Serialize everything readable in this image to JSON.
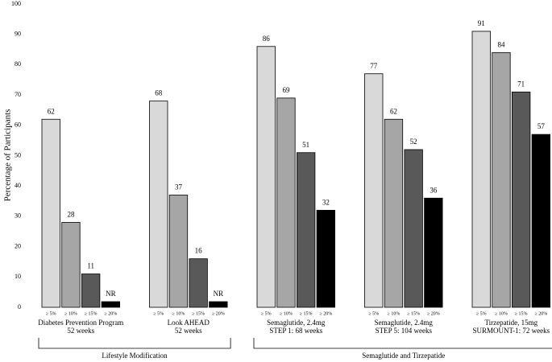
{
  "chart_data": {
    "type": "bar",
    "ylabel": "Percentage of Participants",
    "categories": [
      [
        "Diabetes Prevention Program",
        "52 weeks"
      ],
      [
        "Look AHEAD",
        "52 weeks"
      ],
      [
        "Semaglutide, 2.4mg",
        "STEP 1: 68 weeks"
      ],
      [
        "Semaglutide, 2.4mg",
        "STEP 5: 104 weeks"
      ],
      [
        "Tirzepatide, 15mg",
        "SURMOUNT-1: 72 weeks"
      ]
    ],
    "series": [
      {
        "name": "≥ 5%",
        "color": "#d9d9d9",
        "values": [
          62,
          68,
          86,
          77,
          91
        ]
      },
      {
        "name": "≥ 10%",
        "color": "#a6a6a6",
        "values": [
          28,
          37,
          69,
          62,
          84
        ]
      },
      {
        "name": "≥ 15%",
        "color": "#595959",
        "values": [
          11,
          16,
          51,
          52,
          71
        ]
      },
      {
        "name": "≥ 20%",
        "color": "#000000",
        "values": [
          null,
          null,
          32,
          36,
          57
        ],
        "value_labels": [
          "NR",
          "NR",
          "32",
          "36",
          "57"
        ]
      }
    ],
    "brackets": [
      {
        "label": "Lifestyle Modification",
        "from": 0,
        "to": 1
      },
      {
        "label": "Semaglutide and Tirzepatide",
        "from": 2,
        "to": 4
      }
    ],
    "ylim": [
      0,
      100
    ],
    "yticks": [
      0,
      10,
      20,
      30,
      40,
      50,
      60,
      70,
      80,
      90,
      100
    ],
    "grid": false
  }
}
